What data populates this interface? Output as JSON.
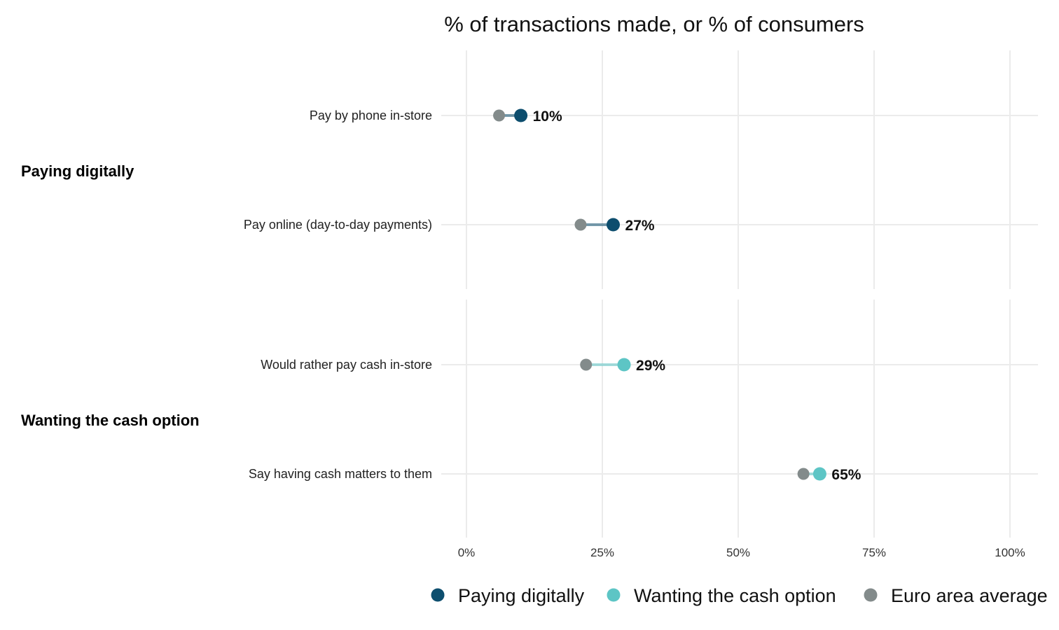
{
  "chart_data": {
    "type": "scatter",
    "title": "% of transactions made, or % of consumers",
    "xlabel": "",
    "ylabel": "",
    "xlim": [
      0,
      100
    ],
    "x_ticks": [
      0,
      25,
      50,
      75,
      100
    ],
    "x_tick_labels": [
      "0%",
      "25%",
      "50%",
      "75%",
      "100%"
    ],
    "grid": true,
    "legend_position": "bottom",
    "groups": [
      {
        "name": "Paying digitally",
        "color": "#0d4e6e",
        "rows": [
          {
            "label": "Pay by phone in-store",
            "value": 10,
            "euro_area_average": 6,
            "value_label": "10%"
          },
          {
            "label": "Pay online (day-to-day payments)",
            "value": 27,
            "euro_area_average": 21,
            "value_label": "27%"
          }
        ]
      },
      {
        "name": "Wanting the cash option",
        "color": "#5dc5c5",
        "rows": [
          {
            "label": "Would rather pay cash in-store",
            "value": 29,
            "euro_area_average": 22,
            "value_label": "29%"
          },
          {
            "label": "Say having cash matters to them",
            "value": 65,
            "euro_area_average": 62,
            "value_label": "65%"
          }
        ]
      }
    ],
    "series": [
      {
        "name": "Paying digitally",
        "color": "#0d4e6e"
      },
      {
        "name": "Wanting the cash option",
        "color": "#5dc5c5"
      },
      {
        "name": "Euro area average",
        "color": "#838b8b"
      }
    ]
  }
}
